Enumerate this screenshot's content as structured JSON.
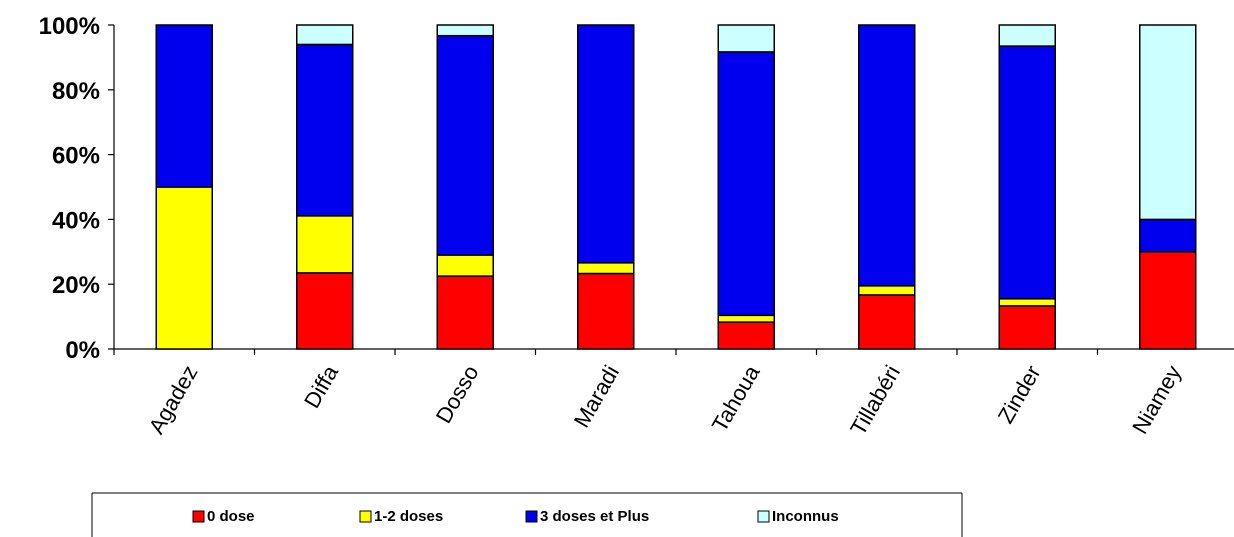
{
  "chart_data": {
    "type": "bar",
    "stacked": true,
    "percent": true,
    "categories": [
      "Agadez",
      "Diffa",
      "Dosso",
      "Maradi",
      "Tahoua",
      "Tillabéri",
      "Zinder",
      "Niamey"
    ],
    "series": [
      {
        "name": "0 dose",
        "color": "#ff0000",
        "values": [
          0,
          23.5,
          22.5,
          23.3,
          8.3,
          16.7,
          13.3,
          30
        ]
      },
      {
        "name": "1-2 doses",
        "color": "#ffff00",
        "values": [
          50,
          17.6,
          6.5,
          3.3,
          2.1,
          2.8,
          2.2,
          0
        ]
      },
      {
        "name": "3 doses et Plus",
        "color": "#0000ee",
        "values": [
          50,
          52.9,
          67.7,
          73.4,
          81.3,
          80.5,
          78.0,
          10
        ]
      },
      {
        "name": "Inconnus",
        "color": "#ccffff",
        "values": [
          0,
          6.0,
          3.3,
          0,
          8.3,
          0,
          6.5,
          60
        ]
      }
    ],
    "yticks": [
      "0%",
      "20%",
      "40%",
      "60%",
      "80%",
      "100%"
    ],
    "ylim": [
      0,
      100
    ],
    "legend_position": "bottom",
    "grid": false
  }
}
